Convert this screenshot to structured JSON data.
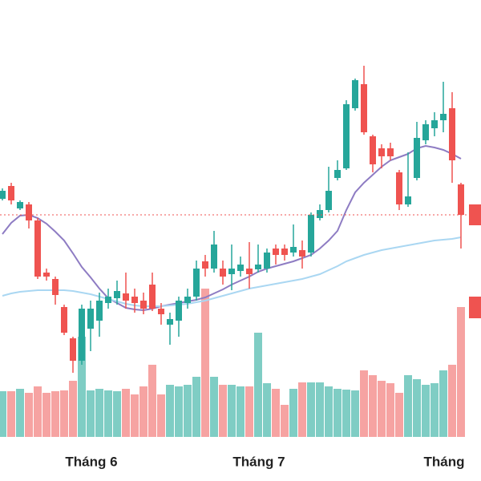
{
  "chart_data": {
    "type": "candlestick",
    "categories": [
      null,
      null,
      null,
      null,
      null,
      null,
      null,
      null,
      null,
      null,
      "Tháng 6",
      null,
      null,
      null,
      null,
      null,
      null,
      null,
      null,
      null,
      null,
      null,
      null,
      null,
      null,
      null,
      null,
      null,
      null,
      "Tháng 7",
      null,
      null,
      null,
      null,
      null,
      null,
      null,
      null,
      null,
      null,
      null,
      null,
      null,
      null,
      null,
      null,
      null,
      null,
      null,
      null,
      "Tháng",
      null,
      null
    ],
    "open": [
      352,
      368,
      340,
      345,
      325,
      260,
      252,
      217,
      178,
      150,
      190,
      200,
      222,
      228,
      234,
      230,
      225,
      245,
      215,
      195,
      200,
      222,
      230,
      274,
      265,
      265,
      258,
      262,
      265,
      264,
      265,
      290,
      290,
      285,
      288,
      285,
      328,
      338,
      378,
      390,
      465,
      495,
      430,
      415,
      415,
      385,
      345,
      378,
      425,
      440,
      450,
      465,
      370
    ],
    "high": [
      365,
      372,
      350,
      348,
      328,
      265,
      255,
      220,
      180,
      220,
      225,
      235,
      240,
      250,
      260,
      240,
      235,
      260,
      222,
      210,
      230,
      240,
      275,
      282,
      312,
      275,
      295,
      280,
      298,
      295,
      290,
      295,
      295,
      320,
      300,
      335,
      345,
      392,
      400,
      475,
      502,
      518,
      432,
      420,
      422,
      388,
      410,
      448,
      450,
      460,
      498,
      485,
      372
    ],
    "low": [
      350,
      345,
      338,
      315,
      252,
      250,
      220,
      182,
      135,
      145,
      162,
      180,
      215,
      220,
      215,
      210,
      208,
      212,
      195,
      170,
      180,
      215,
      225,
      255,
      260,
      245,
      238,
      255,
      240,
      260,
      260,
      270,
      275,
      280,
      265,
      280,
      325,
      335,
      375,
      388,
      462,
      432,
      385,
      390,
      400,
      338,
      342,
      375,
      420,
      430,
      435,
      372,
      290
    ],
    "close": [
      362,
      350,
      348,
      325,
      255,
      255,
      232,
      185,
      150,
      215,
      215,
      225,
      230,
      237,
      225,
      222,
      215,
      215,
      208,
      202,
      225,
      230,
      265,
      265,
      295,
      255,
      265,
      270,
      258,
      270,
      285,
      282,
      282,
      292,
      280,
      332,
      338,
      362,
      388,
      470,
      500,
      435,
      395,
      405,
      405,
      345,
      355,
      428,
      445,
      450,
      458,
      400,
      332
    ],
    "volume": [
      57,
      57,
      60,
      55,
      63,
      55,
      57,
      58,
      70,
      125,
      58,
      60,
      58,
      57,
      60,
      53,
      63,
      90,
      53,
      65,
      63,
      65,
      75,
      185,
      75,
      65,
      65,
      63,
      63,
      130,
      67,
      60,
      40,
      60,
      68,
      68,
      68,
      63,
      60,
      59,
      58,
      83,
      77,
      70,
      67,
      55,
      77,
      72,
      65,
      67,
      83,
      90,
      162
    ],
    "up_color": "#26a69a",
    "down_color": "#ef5350",
    "volume_up_color": "#7fcdc4",
    "volume_down_color": "#f6a3a2",
    "ylim": [
      0,
      600
    ],
    "moving_averages": [
      {
        "color": "#8e7cc3",
        "values": [
          308,
          322,
          331,
          332,
          328,
          321,
          311,
          300,
          284,
          267,
          254,
          240,
          228,
          222,
          216,
          214,
          213,
          215,
          218,
          220,
          222,
          224,
          226,
          229,
          234,
          239,
          245,
          250,
          255,
          261,
          265,
          268,
          271,
          274,
          278,
          282,
          290,
          300,
          312,
          338,
          360,
          372,
          382,
          392,
          400,
          404,
          408,
          415,
          418,
          416,
          413,
          408,
          402
        ]
      },
      {
        "color": "#aad7f2",
        "values": [
          231,
          234,
          236,
          237,
          238,
          238,
          238,
          238,
          237,
          235,
          233,
          230,
          227,
          224,
          221,
          219,
          218,
          218,
          218,
          219,
          220,
          221,
          223,
          225,
          228,
          231,
          234,
          237,
          240,
          242,
          244,
          246,
          248,
          250,
          252,
          255,
          258,
          263,
          268,
          274,
          278,
          282,
          285,
          288,
          290,
          292,
          294,
          296,
          298,
          300,
          301,
          302,
          304
        ]
      }
    ],
    "last_price_line_color": "#ef5350"
  }
}
